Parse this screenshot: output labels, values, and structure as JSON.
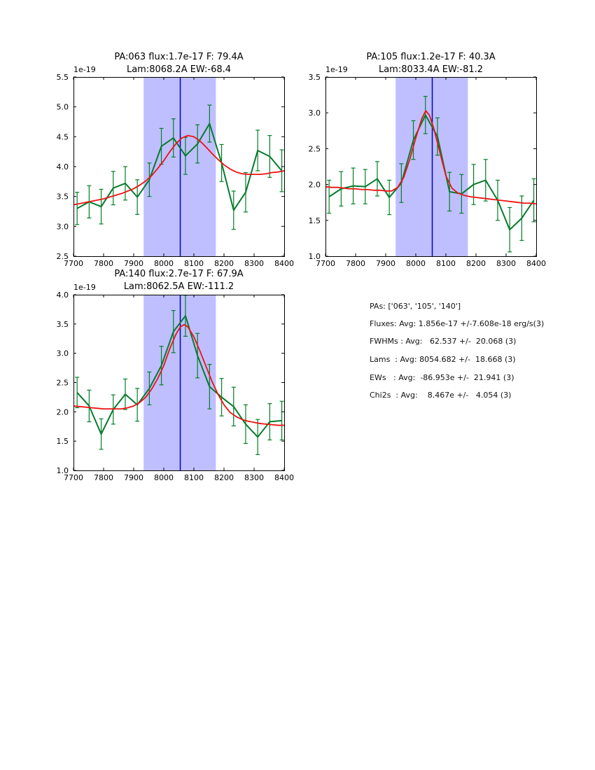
{
  "page": {
    "background": "#ffffff"
  },
  "colors": {
    "spectrum_green": "#077a2d",
    "errorbar_green": "#008024",
    "fit_red": "#ee1212",
    "center_line_blue": "#0000cc",
    "band_violet": "#bfbfff",
    "axis_black": "#000000"
  },
  "chart_data": [
    {
      "type": "line",
      "title": "PA:063 flux:1.7e-17 F: 79.4A",
      "subtitle": "Lam:8068.2A EW:-68.4",
      "offset_label": "1e-19",
      "xlim": [
        7700,
        8400
      ],
      "ylim": [
        2.5,
        5.5
      ],
      "xticks": [
        7700,
        7800,
        7900,
        8000,
        8100,
        8200,
        8300,
        8400
      ],
      "yticks": [
        2.5,
        3.0,
        3.5,
        4.0,
        4.5,
        5.0,
        5.5
      ],
      "band_x": [
        7933,
        8173
      ],
      "marker_line_x": 8054.7,
      "grid": false,
      "data": {
        "x": [
          7712,
          7752,
          7792,
          7832,
          7872,
          7912,
          7952,
          7992,
          8032,
          8072,
          8112,
          8152,
          8192,
          8232,
          8272,
          8312,
          8352,
          8392
        ],
        "y": [
          3.3,
          3.41,
          3.33,
          3.64,
          3.72,
          3.49,
          3.78,
          4.34,
          4.48,
          4.18,
          4.38,
          4.72,
          4.06,
          3.27,
          3.57,
          4.27,
          4.17,
          3.93
        ],
        "yerr": [
          0.27,
          0.27,
          0.29,
          0.28,
          0.28,
          0.29,
          0.28,
          0.3,
          0.32,
          0.31,
          0.32,
          0.31,
          0.31,
          0.32,
          0.33,
          0.34,
          0.35,
          0.35
        ]
      },
      "fit": {
        "x": [
          7700,
          7720,
          7740,
          7760,
          7780,
          7800,
          7820,
          7840,
          7860,
          7880,
          7900,
          7920,
          7940,
          7960,
          7980,
          8000,
          8020,
          8040,
          8060,
          8080,
          8100,
          8120,
          8140,
          8160,
          8180,
          8200,
          8220,
          8240,
          8260,
          8280,
          8300,
          8320,
          8340,
          8360,
          8380,
          8400
        ],
        "y": [
          3.36,
          3.38,
          3.4,
          3.42,
          3.44,
          3.46,
          3.49,
          3.52,
          3.55,
          3.59,
          3.63,
          3.69,
          3.76,
          3.85,
          3.97,
          4.1,
          4.25,
          4.38,
          4.48,
          4.52,
          4.5,
          4.43,
          4.33,
          4.22,
          4.12,
          4.03,
          3.96,
          3.91,
          3.88,
          3.87,
          3.87,
          3.87,
          3.88,
          3.9,
          3.91,
          3.93
        ]
      }
    },
    {
      "type": "line",
      "title": "PA:105 flux:1.2e-17 F: 40.3A",
      "subtitle": "Lam:8033.4A EW:-81.2",
      "offset_label": "1e-19",
      "xlim": [
        7700,
        8400
      ],
      "ylim": [
        1.0,
        3.5
      ],
      "xticks": [
        7700,
        7800,
        7900,
        8000,
        8100,
        8200,
        8300,
        8400
      ],
      "yticks": [
        1.0,
        1.5,
        2.0,
        2.5,
        3.0,
        3.5
      ],
      "band_x": [
        7933,
        8173
      ],
      "marker_line_x": 8054.7,
      "grid": false,
      "data": {
        "x": [
          7712,
          7752,
          7792,
          7832,
          7872,
          7912,
          7952,
          7992,
          8032,
          8072,
          8112,
          8152,
          8192,
          8232,
          8272,
          8312,
          8352,
          8392
        ],
        "y": [
          1.83,
          1.94,
          1.98,
          1.97,
          2.08,
          1.82,
          2.02,
          2.62,
          2.97,
          2.67,
          1.9,
          1.87,
          2.0,
          2.06,
          1.78,
          1.37,
          1.53,
          1.78
        ],
        "yerr": [
          0.23,
          0.24,
          0.25,
          0.24,
          0.24,
          0.24,
          0.27,
          0.27,
          0.26,
          0.26,
          0.27,
          0.27,
          0.28,
          0.29,
          0.28,
          0.31,
          0.31,
          0.3
        ]
      },
      "fit": {
        "x": [
          7700,
          7720,
          7740,
          7760,
          7780,
          7800,
          7820,
          7840,
          7860,
          7880,
          7900,
          7920,
          7940,
          7960,
          7980,
          8000,
          8020,
          8033,
          8045,
          8060,
          8080,
          8100,
          8120,
          8140,
          8160,
          8180,
          8200,
          8220,
          8240,
          8260,
          8280,
          8300,
          8320,
          8340,
          8360,
          8380,
          8400
        ],
        "y": [
          1.97,
          1.96,
          1.96,
          1.95,
          1.94,
          1.94,
          1.93,
          1.93,
          1.92,
          1.92,
          1.91,
          1.91,
          1.96,
          2.1,
          2.35,
          2.65,
          2.92,
          3.03,
          2.97,
          2.78,
          2.45,
          2.12,
          1.95,
          1.88,
          1.85,
          1.83,
          1.82,
          1.81,
          1.8,
          1.79,
          1.78,
          1.77,
          1.76,
          1.75,
          1.74,
          1.74,
          1.73
        ]
      }
    },
    {
      "type": "line",
      "title": "PA:140 flux:2.7e-17 F: 67.9A",
      "subtitle": "Lam:8062.5A EW:-111.2",
      "offset_label": "1e-19",
      "xlim": [
        7700,
        8400
      ],
      "ylim": [
        1.0,
        4.0
      ],
      "xticks": [
        7700,
        7800,
        7900,
        8000,
        8100,
        8200,
        8300,
        8400
      ],
      "yticks": [
        1.0,
        1.5,
        2.0,
        2.5,
        3.0,
        3.5,
        4.0
      ],
      "band_x": [
        7933,
        8173
      ],
      "marker_line_x": 8054.7,
      "grid": false,
      "data": {
        "x": [
          7712,
          7752,
          7792,
          7832,
          7872,
          7912,
          7952,
          7992,
          8032,
          8072,
          8112,
          8152,
          8192,
          8232,
          8272,
          8312,
          8352,
          8392
        ],
        "y": [
          2.33,
          2.1,
          1.62,
          2.04,
          2.3,
          2.12,
          2.4,
          2.79,
          3.37,
          3.64,
          2.96,
          2.43,
          2.25,
          2.09,
          1.79,
          1.57,
          1.83,
          1.85
        ],
        "yerr": [
          0.26,
          0.27,
          0.26,
          0.25,
          0.26,
          0.28,
          0.28,
          0.33,
          0.36,
          0.35,
          0.38,
          0.38,
          0.32,
          0.33,
          0.33,
          0.3,
          0.31,
          0.33
        ]
      },
      "fit": {
        "x": [
          7700,
          7720,
          7740,
          7760,
          7780,
          7800,
          7820,
          7840,
          7860,
          7880,
          7900,
          7920,
          7940,
          7960,
          7980,
          8000,
          8020,
          8040,
          8055,
          8068,
          8080,
          8100,
          8120,
          8140,
          8160,
          8180,
          8200,
          8220,
          8240,
          8260,
          8280,
          8300,
          8320,
          8340,
          8360,
          8380,
          8400
        ],
        "y": [
          2.1,
          2.09,
          2.08,
          2.07,
          2.06,
          2.05,
          2.05,
          2.05,
          2.05,
          2.07,
          2.1,
          2.16,
          2.25,
          2.39,
          2.57,
          2.79,
          3.08,
          3.32,
          3.45,
          3.49,
          3.45,
          3.28,
          3.04,
          2.78,
          2.52,
          2.3,
          2.12,
          1.99,
          1.92,
          1.87,
          1.84,
          1.82,
          1.8,
          1.79,
          1.78,
          1.77,
          1.77
        ]
      }
    }
  ],
  "summary_panel": {
    "lines": [
      "PAs: ['063', '105', '140']",
      "Fluxes: Avg: 1.856e-17 +/-7.608e-18 erg/s(3)",
      "FWHMs : Avg:   62.537 +/-  20.068 (3)",
      "Lams  : Avg: 8054.682 +/-  18.668 (3)",
      "EWs   : Avg:  -86.953e +/-  21.941 (3)",
      "Chi2s  : Avg:    8.467e +/-   4.054 (3)"
    ]
  }
}
